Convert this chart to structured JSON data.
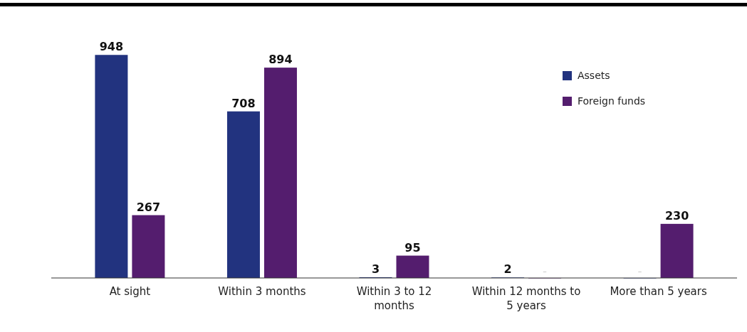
{
  "chart_data": {
    "type": "bar",
    "categories": [
      "At sight",
      "Within 3 months",
      "Within 3 to 12 months",
      "Within 12 months to 5 years",
      "More than 5 years"
    ],
    "series": [
      {
        "name": "Assets",
        "color": "#22337f",
        "values": [
          948,
          708,
          3,
          2,
          0
        ],
        "value_labels": [
          "948",
          "708",
          "3",
          "2",
          "–"
        ]
      },
      {
        "name": "Foreign funds",
        "color": "#541d6e",
        "values": [
          267,
          894,
          95,
          0,
          230
        ],
        "value_labels": [
          "267",
          "894",
          "95",
          "–",
          "230"
        ]
      }
    ],
    "legend": "top right"
  }
}
